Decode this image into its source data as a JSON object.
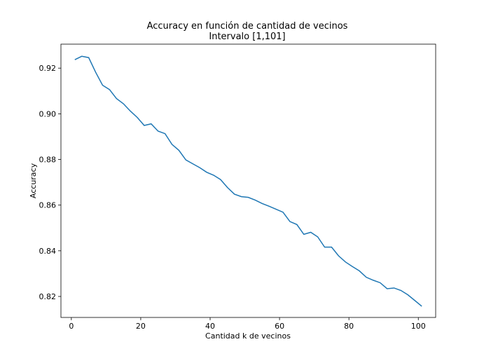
{
  "chart_data": {
    "type": "line",
    "title": "Accuracy en función de cantidad de vecinos",
    "subtitle": "Intervalo [1,101]",
    "xlabel": "Cantidad k de vecinos",
    "ylabel": "Accuracy",
    "xlim": [
      -3,
      105
    ],
    "ylim": [
      0.8108,
      0.9305
    ],
    "xticks": [
      0,
      20,
      40,
      60,
      80,
      100
    ],
    "xtick_labels": [
      "0",
      "20",
      "40",
      "60",
      "80",
      "100"
    ],
    "yticks": [
      0.82,
      0.84,
      0.86,
      0.88,
      0.9,
      0.92
    ],
    "ytick_labels": [
      "0.82",
      "0.84",
      "0.86",
      "0.88",
      "0.90",
      "0.92"
    ],
    "grid": false,
    "line_color": "#1f77b4",
    "series": [
      {
        "x": [
          1,
          3,
          5,
          7,
          9,
          11,
          13,
          15,
          17,
          19,
          21,
          23,
          25,
          27,
          29,
          31,
          33,
          35,
          37,
          39,
          41,
          43,
          45,
          47,
          49,
          51,
          53,
          55,
          57,
          59,
          61,
          63,
          65,
          67,
          69,
          71,
          73,
          75,
          77,
          79,
          81,
          83,
          85,
          87,
          89,
          91,
          93,
          95,
          97,
          99,
          101
        ],
        "y": [
          0.9237,
          0.9252,
          0.9246,
          0.9182,
          0.9125,
          0.9106,
          0.9067,
          0.9044,
          0.9012,
          0.8984,
          0.8949,
          0.8956,
          0.8924,
          0.8913,
          0.8866,
          0.884,
          0.8798,
          0.8781,
          0.8764,
          0.8744,
          0.8731,
          0.8712,
          0.8677,
          0.8648,
          0.8637,
          0.8634,
          0.8622,
          0.8607,
          0.8595,
          0.8582,
          0.8569,
          0.8528,
          0.8515,
          0.8472,
          0.8481,
          0.8461,
          0.8416,
          0.8416,
          0.8378,
          0.8351,
          0.8331,
          0.8312,
          0.8284,
          0.8271,
          0.826,
          0.8234,
          0.8237,
          0.8226,
          0.8207,
          0.8182,
          0.8157
        ]
      }
    ]
  }
}
